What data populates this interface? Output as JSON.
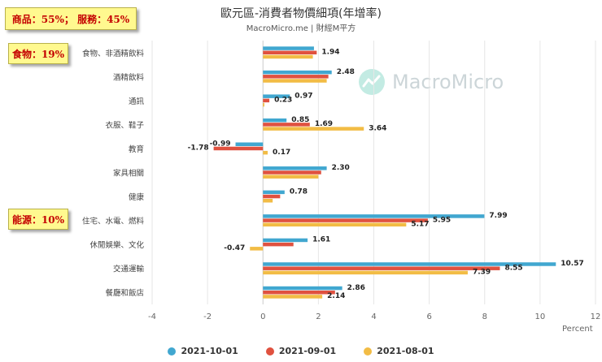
{
  "header": {
    "title": "歐元區-消費者物價細項(年增率)",
    "subtitle": "MacroMicro.me | 財經M平方"
  },
  "watermark": {
    "text": "MacroMicro"
  },
  "callouts": {
    "top": "商品：55%； 服務：45%",
    "food": "食物：19%",
    "energy": "能源：10%"
  },
  "colors": {
    "series_1": "#41a7d0",
    "series_2": "#e0513f",
    "series_3": "#f2bc45",
    "grid": "#e6e6e6",
    "axis_text": "#666666"
  },
  "chart_data": {
    "type": "bar",
    "orientation": "horizontal",
    "title": "歐元區-消費者物價細項(年增率)",
    "xlabel": "Percent",
    "xlim": [
      -4,
      12
    ],
    "xticks": [
      -4,
      -2,
      0,
      2,
      4,
      6,
      8,
      10,
      12
    ],
    "grid": true,
    "legend_position": "bottom",
    "categories": [
      "食物、非酒精飲料",
      "酒精飲料",
      "通訊",
      "衣服、鞋子",
      "教育",
      "家具相關",
      "健康",
      "住宅、水電、燃料",
      "休閒娛樂、文化",
      "交通運輸",
      "餐廳和飯店"
    ],
    "series": [
      {
        "name": "2021-10-01",
        "values": [
          1.84,
          2.48,
          0.97,
          0.85,
          -0.99,
          2.3,
          0.78,
          7.99,
          1.61,
          10.57,
          2.86
        ]
      },
      {
        "name": "2021-09-01",
        "values": [
          1.94,
          2.36,
          0.23,
          1.69,
          -1.78,
          2.1,
          0.62,
          5.95,
          1.1,
          8.55,
          2.6
        ]
      },
      {
        "name": "2021-08-01",
        "values": [
          1.8,
          2.3,
          0.05,
          3.64,
          0.17,
          2.0,
          0.35,
          5.17,
          -0.47,
          7.39,
          2.14
        ]
      }
    ],
    "data_labels": [
      [
        "",
        "2.48",
        "0.97",
        "0.85",
        "-0.99",
        "2.30",
        "0.78",
        "7.99",
        "1.61",
        "10.57",
        "2.86"
      ],
      [
        "1.94",
        "",
        "0.23",
        "1.69",
        "-1.78",
        "",
        "",
        "5.95",
        "",
        "8.55",
        ""
      ],
      [
        "",
        "",
        "",
        "3.64",
        "0.17",
        "",
        "",
        "5.17",
        "-0.47",
        "7.39",
        "2.14"
      ]
    ]
  }
}
